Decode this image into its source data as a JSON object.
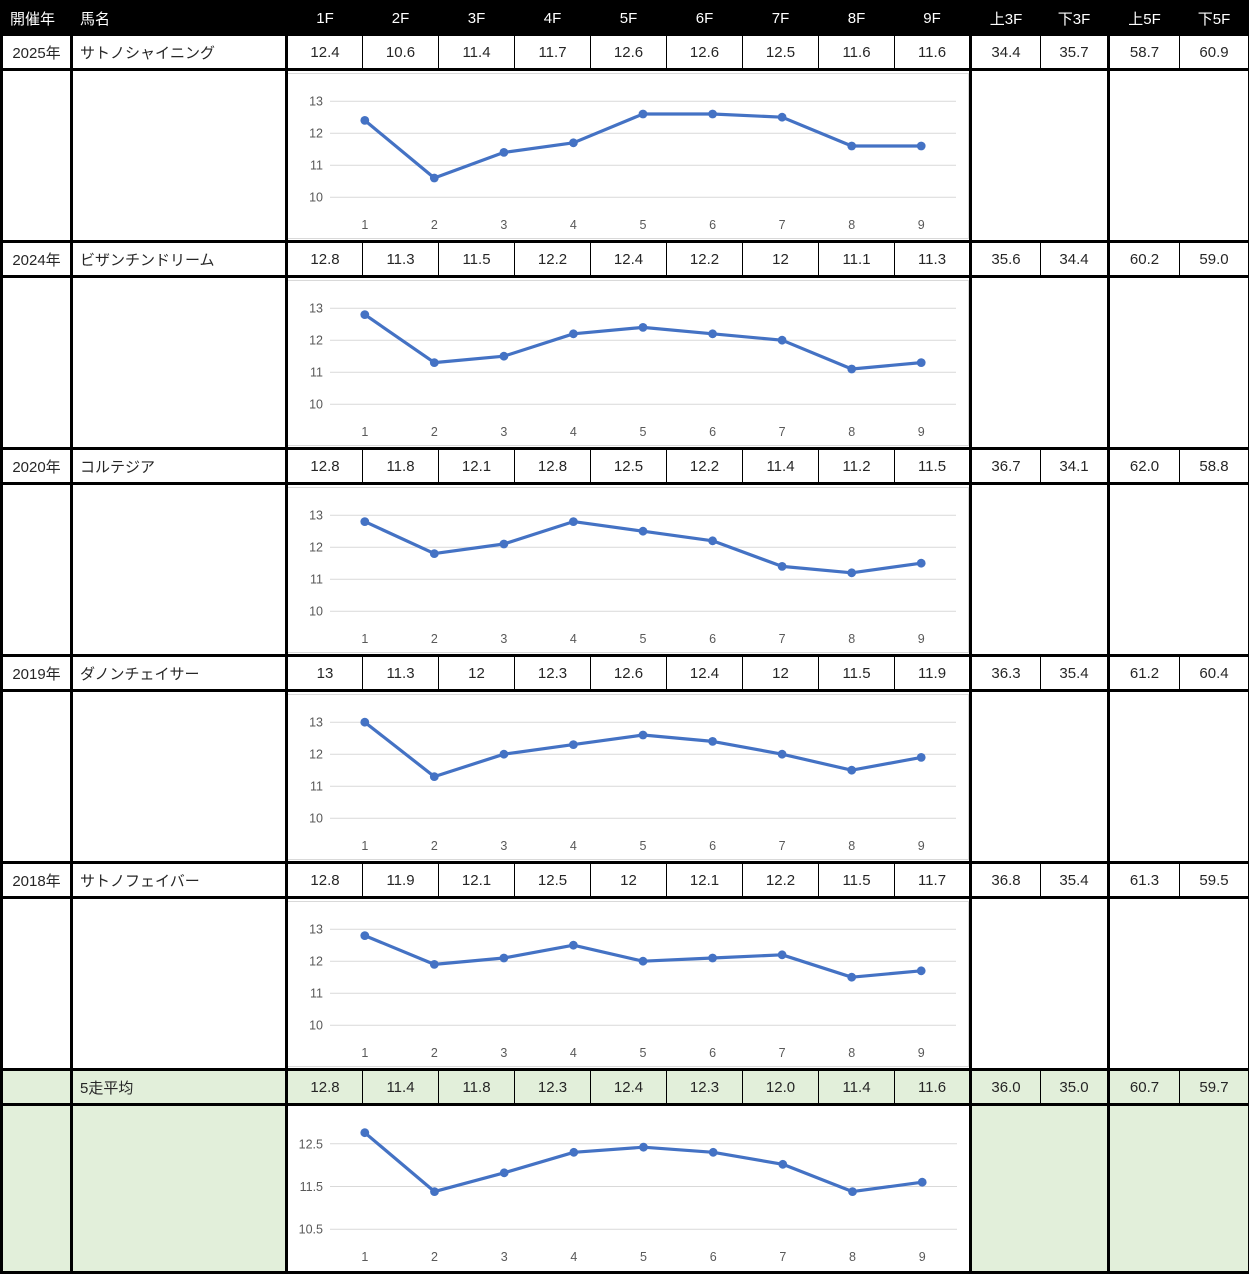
{
  "colors": {
    "line": "#4472C4",
    "grid": "#D9D9D9",
    "tick": "#595959",
    "avg_bg": "#E2EFDA",
    "header_bg": "#000000",
    "header_fg": "#FFFFFF",
    "border": "#000000",
    "cell_text": "#262626",
    "row_bg": "#FFFFFF"
  },
  "table": {
    "header": {
      "year": "開催年",
      "name": "馬名",
      "laps": [
        "1F",
        "2F",
        "3F",
        "4F",
        "5F",
        "6F",
        "7F",
        "8F",
        "9F"
      ],
      "extras": [
        "上3F",
        "下3F",
        "上5F",
        "下5F"
      ]
    },
    "rows": [
      {
        "year": "2025年",
        "name": "サトノシャイニング",
        "laps": [
          "12.4",
          "10.6",
          "11.4",
          "11.7",
          "12.6",
          "12.6",
          "12.5",
          "11.6",
          "11.6"
        ],
        "extras": [
          "34.4",
          "35.7",
          "58.7",
          "60.9"
        ]
      },
      {
        "year": "2024年",
        "name": "ビザンチンドリーム",
        "laps": [
          "12.8",
          "11.3",
          "11.5",
          "12.2",
          "12.4",
          "12.2",
          "12",
          "11.1",
          "11.3"
        ],
        "extras": [
          "35.6",
          "34.4",
          "60.2",
          "59.0"
        ]
      },
      {
        "year": "2020年",
        "name": "コルテジア",
        "laps": [
          "12.8",
          "11.8",
          "12.1",
          "12.8",
          "12.5",
          "12.2",
          "11.4",
          "11.2",
          "11.5"
        ],
        "extras": [
          "36.7",
          "34.1",
          "62.0",
          "58.8"
        ]
      },
      {
        "year": "2019年",
        "name": "ダノンチェイサー",
        "laps": [
          "13",
          "11.3",
          "12",
          "12.3",
          "12.6",
          "12.4",
          "12",
          "11.5",
          "11.9"
        ],
        "extras": [
          "36.3",
          "35.4",
          "61.2",
          "60.4"
        ]
      },
      {
        "year": "2018年",
        "name": "サトノフェイバー",
        "laps": [
          "12.8",
          "11.9",
          "12.1",
          "12.5",
          "12",
          "12.1",
          "12.2",
          "11.5",
          "11.7"
        ],
        "extras": [
          "36.8",
          "35.4",
          "61.3",
          "59.5"
        ]
      }
    ],
    "average": {
      "label": "5走平均",
      "laps": [
        "12.8",
        "11.4",
        "11.8",
        "12.3",
        "12.4",
        "12.3",
        "12.0",
        "11.4",
        "11.6"
      ],
      "extras": [
        "36.0",
        "35.0",
        "60.7",
        "59.7"
      ]
    }
  },
  "chart_data": [
    {
      "type": "line",
      "x": [
        "1",
        "2",
        "3",
        "4",
        "5",
        "6",
        "7",
        "8",
        "9"
      ],
      "values": [
        12.4,
        10.6,
        11.4,
        11.7,
        12.6,
        12.6,
        12.5,
        11.6,
        11.6
      ],
      "yticks": [
        10,
        11,
        12,
        13
      ],
      "ylim": [
        9.6,
        13.6
      ],
      "xlabel": "",
      "ylabel": "",
      "grid": true,
      "legend": false,
      "line_color": "#4472C4"
    },
    {
      "type": "line",
      "x": [
        "1",
        "2",
        "3",
        "4",
        "5",
        "6",
        "7",
        "8",
        "9"
      ],
      "values": [
        12.8,
        11.3,
        11.5,
        12.2,
        12.4,
        12.2,
        12.0,
        11.1,
        11.3
      ],
      "yticks": [
        10,
        11,
        12,
        13
      ],
      "ylim": [
        9.6,
        13.6
      ],
      "xlabel": "",
      "ylabel": "",
      "grid": true,
      "legend": false,
      "line_color": "#4472C4"
    },
    {
      "type": "line",
      "x": [
        "1",
        "2",
        "3",
        "4",
        "5",
        "6",
        "7",
        "8",
        "9"
      ],
      "values": [
        12.8,
        11.8,
        12.1,
        12.8,
        12.5,
        12.2,
        11.4,
        11.2,
        11.5
      ],
      "yticks": [
        10,
        11,
        12,
        13
      ],
      "ylim": [
        9.6,
        13.6
      ],
      "xlabel": "",
      "ylabel": "",
      "grid": true,
      "legend": false,
      "line_color": "#4472C4"
    },
    {
      "type": "line",
      "x": [
        "1",
        "2",
        "3",
        "4",
        "5",
        "6",
        "7",
        "8",
        "9"
      ],
      "values": [
        13.0,
        11.3,
        12.0,
        12.3,
        12.6,
        12.4,
        12.0,
        11.5,
        11.9
      ],
      "yticks": [
        10,
        11,
        12,
        13
      ],
      "ylim": [
        9.6,
        13.6
      ],
      "xlabel": "",
      "ylabel": "",
      "grid": true,
      "legend": false,
      "line_color": "#4472C4"
    },
    {
      "type": "line",
      "x": [
        "1",
        "2",
        "3",
        "4",
        "5",
        "6",
        "7",
        "8",
        "9"
      ],
      "values": [
        12.8,
        11.9,
        12.1,
        12.5,
        12.0,
        12.1,
        12.2,
        11.5,
        11.7
      ],
      "yticks": [
        10,
        11,
        12,
        13
      ],
      "ylim": [
        9.6,
        13.6
      ],
      "xlabel": "",
      "ylabel": "",
      "grid": true,
      "legend": false,
      "line_color": "#4472C4"
    },
    {
      "type": "line",
      "x": [
        "1",
        "2",
        "3",
        "4",
        "5",
        "6",
        "7",
        "8",
        "9"
      ],
      "values": [
        12.76,
        11.38,
        11.82,
        12.3,
        12.42,
        12.3,
        12.02,
        11.38,
        11.6
      ],
      "yticks": [
        10.5,
        11.5,
        12.5
      ],
      "ylim": [
        10.2,
        13.15
      ],
      "xlabel": "",
      "ylabel": "",
      "grid": true,
      "legend": false,
      "line_color": "#4472C4"
    }
  ]
}
